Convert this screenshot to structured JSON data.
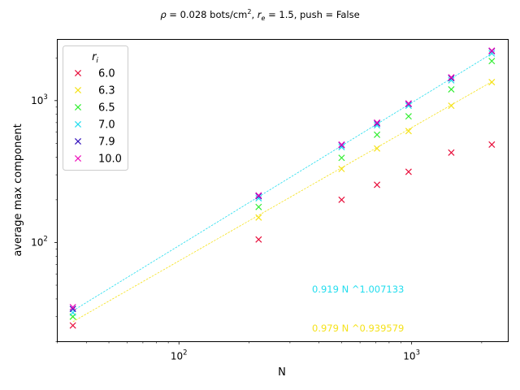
{
  "chart_data": {
    "type": "scatter",
    "title": "ρ = 0.028 bots/cm², r_e = 1.5, push = False",
    "title_parts": {
      "rho": "ρ",
      "rho_rest": " = 0.028 bots/cm",
      "sq": "2",
      "sep": ", ",
      "re_base": "r",
      "re_sub": "e",
      "re_rest": " = 1.5, push = False"
    },
    "xlabel": "N",
    "ylabel": "average max component",
    "xscale": "log",
    "yscale": "log",
    "xlim": [
      30,
      2600
    ],
    "ylim": [
      20,
      2700
    ],
    "x_major_ticks": [
      {
        "v": 100,
        "base": "10",
        "exp": "2"
      },
      {
        "v": 1000,
        "base": "10",
        "exp": "3"
      }
    ],
    "y_major_ticks": [
      {
        "v": 100,
        "base": "10",
        "exp": "2"
      },
      {
        "v": 1000,
        "base": "10",
        "exp": "3"
      }
    ],
    "grid": false,
    "legend": {
      "title_base": "r",
      "title_sub": "i",
      "placement": "upper-left"
    },
    "x": [
      35,
      220,
      500,
      710,
      970,
      1480,
      2210
    ],
    "series": [
      {
        "name": "6.0",
        "color": "#e8103c",
        "values": [
          26,
          105,
          200,
          255,
          315,
          430,
          490
        ]
      },
      {
        "name": "6.3",
        "color": "#f5e21b",
        "values": [
          30,
          150,
          330,
          460,
          610,
          920,
          1350
        ]
      },
      {
        "name": "6.5",
        "color": "#33ee33",
        "values": [
          30,
          178,
          395,
          575,
          775,
          1200,
          1900
        ]
      },
      {
        "name": "7.0",
        "color": "#22ddee",
        "values": [
          32,
          205,
          470,
          670,
          920,
          1390,
          2150
        ]
      },
      {
        "name": "7.9",
        "color": "#3311bb",
        "values": [
          34,
          212,
          485,
          690,
          945,
          1440,
          2230
        ]
      },
      {
        "name": "10.0",
        "color": "#ee11bb",
        "values": [
          35,
          215,
          490,
          700,
          955,
          1460,
          2250
        ]
      }
    ],
    "fits": [
      {
        "label": "0.919 N ^1.007133",
        "a": 0.919,
        "b": 1.007133,
        "color": "#22ddee"
      },
      {
        "label": "0.979 N ^0.939579",
        "a": 0.979,
        "b": 0.939579,
        "color": "#f5e21b"
      }
    ]
  }
}
